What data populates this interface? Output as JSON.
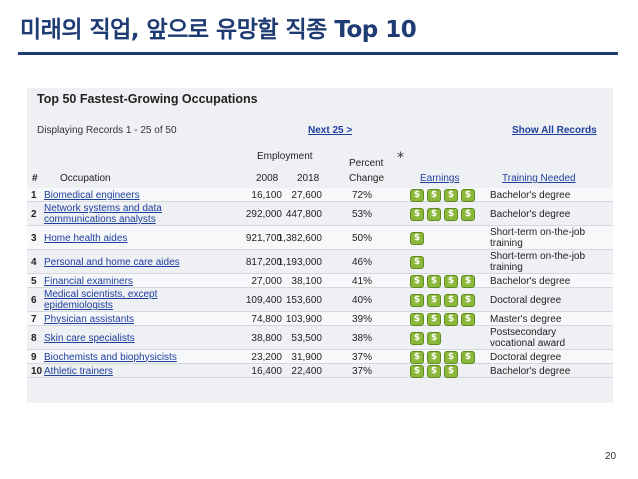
{
  "slide": {
    "title": "미래의 직업, 앞으로 유망할 직종 Top 10",
    "page_number": "20"
  },
  "panel": {
    "title": "Top 50 Fastest-Growing Occupations",
    "records_text": "Displaying Records 1 - 25 of 50",
    "next_link": "Next 25 >",
    "show_all_link": "Show All Records"
  },
  "headers": {
    "rank": "#",
    "occupation": "Occupation",
    "employment": "Employment",
    "y2008": "2008",
    "y2018": "2018",
    "percent_line1": "Percent",
    "percent_line2": "Change",
    "star": "*",
    "earnings": "Earnings",
    "training": "Training Needed"
  },
  "earnings_symbol": "$",
  "rows": [
    {
      "rank": "1",
      "occupation": [
        "Biomedical engineers"
      ],
      "y2008": "16,100",
      "y2018": "27,600",
      "pct": "72%",
      "earnings": 4,
      "training": [
        "Bachelor's degree"
      ]
    },
    {
      "rank": "2",
      "occupation": [
        "Network systems and data",
        "communications analysts"
      ],
      "y2008": "292,000",
      "y2018": "447,800",
      "pct": "53%",
      "earnings": 4,
      "training": [
        "Bachelor's degree"
      ]
    },
    {
      "rank": "3",
      "occupation": [
        "Home health aides"
      ],
      "y2008": "921,700",
      "y2018": "1,382,600",
      "pct": "50%",
      "earnings": 1,
      "training": [
        "Short-term on-the-job",
        "training"
      ]
    },
    {
      "rank": "4",
      "occupation": [
        "Personal and home care aides"
      ],
      "y2008": "817,200",
      "y2018": "1,193,000",
      "pct": "46%",
      "earnings": 1,
      "training": [
        "Short-term on-the-job",
        "training"
      ]
    },
    {
      "rank": "5",
      "occupation": [
        "Financial examiners"
      ],
      "y2008": "27,000",
      "y2018": "38,100",
      "pct": "41%",
      "earnings": 4,
      "training": [
        "Bachelor's degree"
      ]
    },
    {
      "rank": "6",
      "occupation": [
        "Medical scientists, except",
        "epidemiologists"
      ],
      "y2008": "109,400",
      "y2018": "153,600",
      "pct": "40%",
      "earnings": 4,
      "training": [
        "Doctoral degree"
      ]
    },
    {
      "rank": "7",
      "occupation": [
        "Physician assistants"
      ],
      "y2008": "74,800",
      "y2018": "103,900",
      "pct": "39%",
      "earnings": 4,
      "training": [
        "Master's degree"
      ]
    },
    {
      "rank": "8",
      "occupation": [
        "Skin care specialists"
      ],
      "y2008": "38,800",
      "y2018": "53,500",
      "pct": "38%",
      "earnings": 2,
      "training": [
        "Postsecondary",
        "vocational award"
      ]
    },
    {
      "rank": "9",
      "occupation": [
        "Biochemists and biophysicists"
      ],
      "y2008": "23,200",
      "y2018": "31,900",
      "pct": "37%",
      "earnings": 4,
      "training": [
        "Doctoral degree"
      ]
    },
    {
      "rank": "10",
      "occupation": [
        "Athletic trainers"
      ],
      "y2008": "16,400",
      "y2018": "22,400",
      "pct": "37%",
      "earnings": 3,
      "training": [
        "Bachelor's degree"
      ]
    }
  ]
}
